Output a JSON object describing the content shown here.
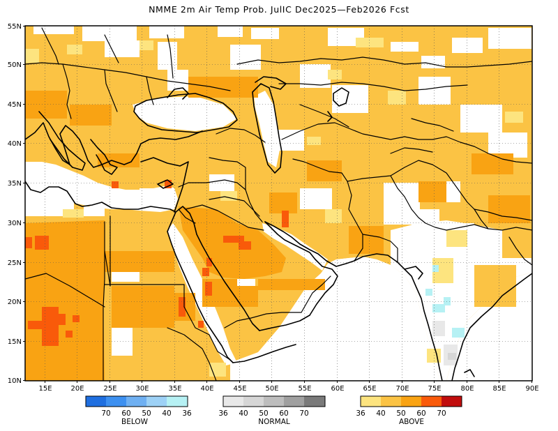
{
  "title": "NMME 2m Air Temp Prob. JulIC  Dec2025—Feb2026 Fcst",
  "map": {
    "lat_ticks": [
      "55N",
      "50N",
      "45N",
      "40N",
      "35N",
      "30N",
      "25N",
      "20N",
      "15N",
      "10N"
    ],
    "lon_ticks": [
      "15E",
      "20E",
      "25E",
      "30E",
      "35E",
      "40E",
      "45E",
      "50E",
      "55E",
      "60E",
      "65E",
      "70E",
      "75E",
      "80E",
      "85E",
      "90E"
    ],
    "grid": true
  },
  "legend": {
    "below": {
      "label": "BELOW",
      "values": [
        "70",
        "60",
        "50",
        "40",
        "36"
      ],
      "colors": [
        "#1f6fe0",
        "#3d90f0",
        "#6fb0f2",
        "#9dd1f6",
        "#b6f1f4"
      ]
    },
    "normal": {
      "label": "NORMAL",
      "values": [
        "36",
        "40",
        "50",
        "60",
        "70"
      ],
      "colors": [
        "#e8e8e8",
        "#d6d6d6",
        "#bdbdbd",
        "#a0a0a0",
        "#7a7a7a"
      ]
    },
    "above": {
      "label": "ABOVE",
      "values": [
        "36",
        "40",
        "50",
        "60",
        "70"
      ],
      "colors": [
        "#fde47f",
        "#fbc344",
        "#f9a313",
        "#f95a0a",
        "#c10d0d"
      ]
    }
  }
}
